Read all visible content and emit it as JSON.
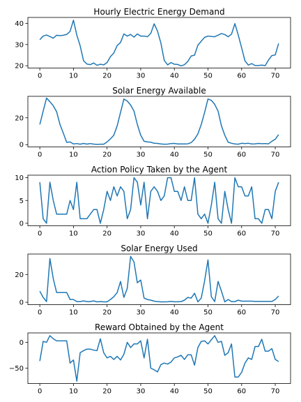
{
  "figure": {
    "line_color": "#1f77b4"
  },
  "chart_data": [
    {
      "type": "line",
      "title": "Hourly Electric Energy Demand",
      "xlabel": "",
      "ylabel": "",
      "xlim": [
        -3.55,
        74.55
      ],
      "ylim": [
        18.9,
        42.8
      ],
      "x_ticks": [
        0,
        10,
        20,
        30,
        40,
        50,
        60,
        70
      ],
      "y_ticks": [
        20,
        30,
        40
      ],
      "grid": false,
      "legend": "none",
      "series": [
        {
          "x": [
            0,
            1,
            2,
            3,
            4,
            5,
            6,
            7,
            8,
            9,
            10,
            11,
            12,
            13,
            14,
            15,
            16,
            17,
            18,
            19,
            20,
            21,
            22,
            23,
            24,
            25,
            26,
            27,
            28,
            29,
            30,
            31,
            32,
            33,
            34,
            35,
            36,
            37,
            38,
            39,
            40,
            41,
            42,
            43,
            44,
            45,
            46,
            47,
            48,
            49,
            50,
            51,
            52,
            53,
            54,
            55,
            56,
            57,
            58,
            59,
            60,
            61,
            62,
            63,
            64,
            65,
            66,
            67,
            68,
            69,
            70,
            71
          ],
          "values": [
            32.3,
            34.0,
            34.5,
            33.8,
            33.0,
            34.4,
            34.2,
            34.4,
            34.8,
            36.2,
            41.5,
            34.5,
            29.4,
            22.4,
            20.8,
            20.5,
            21.3,
            20.2,
            20.7,
            20.4,
            21.5,
            24.3,
            26.0,
            29.5,
            31.0,
            35.0,
            34.0,
            34.8,
            33.5,
            35.0,
            34.0,
            34.0,
            33.7,
            35.3,
            39.8,
            36.3,
            30.7,
            22.5,
            20.4,
            21.5,
            20.7,
            20.6,
            19.9,
            20.5,
            22.0,
            24.6,
            25.0,
            29.7,
            31.6,
            33.4,
            34.0,
            33.8,
            33.7,
            34.4,
            35.2,
            34.7,
            33.7,
            34.9,
            39.9,
            34.5,
            28.5,
            22.3,
            20.3,
            21.0,
            20.1,
            20.1,
            20.3,
            20.0,
            22.7,
            24.8,
            25.1,
            30.5
          ]
        }
      ]
    },
    {
      "type": "line",
      "title": "Solar Energy Available",
      "xlabel": "",
      "ylabel": "",
      "xlim": [
        -3.55,
        74.55
      ],
      "ylim": [
        -1.7,
        36.0
      ],
      "x_ticks": [
        0,
        10,
        20,
        30,
        40,
        50,
        60,
        70
      ],
      "y_ticks": [
        0,
        20
      ],
      "grid": false,
      "legend": "none",
      "series": [
        {
          "x": [
            0,
            1,
            2,
            3,
            4,
            5,
            6,
            7,
            8,
            9,
            10,
            11,
            12,
            13,
            14,
            15,
            16,
            17,
            18,
            19,
            20,
            21,
            22,
            23,
            24,
            25,
            26,
            27,
            28,
            29,
            30,
            31,
            32,
            33,
            34,
            35,
            36,
            37,
            38,
            39,
            40,
            41,
            42,
            43,
            44,
            45,
            46,
            47,
            48,
            49,
            50,
            51,
            52,
            53,
            54,
            55,
            56,
            57,
            58,
            59,
            60,
            61,
            62,
            63,
            64,
            65,
            66,
            67,
            68,
            69,
            70,
            71
          ],
          "values": [
            15.0,
            25.0,
            34.7,
            32.0,
            29.0,
            24.5,
            15.0,
            8.5,
            1.7,
            2.0,
            0.5,
            0.8,
            0.3,
            0.9,
            0.4,
            0.8,
            0.4,
            0.2,
            0.3,
            0.3,
            2.0,
            4.3,
            7.0,
            14.0,
            24.0,
            34.0,
            32.5,
            29.5,
            25.0,
            15.0,
            7.0,
            2.5,
            2.0,
            1.8,
            1.0,
            0.9,
            0.5,
            0.3,
            0.4,
            0.8,
            0.9,
            0.5,
            0.5,
            0.5,
            0.6,
            1.5,
            4.0,
            8.0,
            15.0,
            24.0,
            34.0,
            33.0,
            30.0,
            25.0,
            14.0,
            7.0,
            1.8,
            1.0,
            0.5,
            0.3,
            1.0,
            0.8,
            1.0,
            0.5,
            0.6,
            0.9,
            0.7,
            0.8,
            0.6,
            2.5,
            4.0,
            7.5
          ]
        }
      ]
    },
    {
      "type": "line",
      "title": "Action Policy Taken by the Agent",
      "xlabel": "",
      "ylabel": "",
      "xlim": [
        -3.55,
        74.55
      ],
      "ylim": [
        -0.55,
        10.55
      ],
      "x_ticks": [
        0,
        10,
        20,
        30,
        40,
        50,
        60,
        70
      ],
      "y_ticks": [
        0,
        5,
        10
      ],
      "grid": false,
      "legend": "none",
      "series": [
        {
          "x": [
            0,
            1,
            2,
            3,
            4,
            5,
            6,
            7,
            8,
            9,
            10,
            11,
            12,
            13,
            14,
            15,
            16,
            17,
            18,
            19,
            20,
            21,
            22,
            23,
            24,
            25,
            26,
            27,
            28,
            29,
            30,
            31,
            32,
            33,
            34,
            35,
            36,
            37,
            38,
            39,
            40,
            41,
            42,
            43,
            44,
            45,
            46,
            47,
            48,
            49,
            50,
            51,
            52,
            53,
            54,
            55,
            56,
            57,
            58,
            59,
            60,
            61,
            62,
            63,
            64,
            65,
            66,
            67,
            68,
            69,
            70,
            71
          ],
          "values": [
            9,
            1,
            0,
            9,
            5,
            2,
            2,
            2,
            2,
            5,
            3,
            9,
            1,
            1,
            1,
            2,
            3,
            3,
            0,
            3,
            7,
            5,
            8,
            6,
            8,
            7,
            1,
            3,
            10,
            9,
            4,
            9,
            1,
            7,
            8,
            7,
            5,
            6,
            10,
            10,
            7,
            7,
            5,
            8,
            5,
            5,
            10,
            2,
            1,
            2,
            0,
            4,
            9,
            1,
            0,
            7,
            3,
            0,
            10,
            8,
            8,
            6,
            6,
            8,
            1,
            1,
            0,
            3,
            3,
            1,
            7,
            9
          ]
        }
      ]
    },
    {
      "type": "line",
      "title": "Solar Energy Used",
      "xlabel": "",
      "ylabel": "",
      "xlim": [
        -3.55,
        74.55
      ],
      "ylim": [
        -1.7,
        34.7
      ],
      "x_ticks": [
        0,
        10,
        20,
        30,
        40,
        50,
        60,
        70
      ],
      "y_ticks": [
        0,
        20
      ],
      "grid": false,
      "legend": "none",
      "series": [
        {
          "x": [
            0,
            1,
            2,
            3,
            4,
            5,
            6,
            7,
            8,
            9,
            10,
            11,
            12,
            13,
            14,
            15,
            16,
            17,
            18,
            19,
            20,
            21,
            22,
            23,
            24,
            25,
            26,
            27,
            28,
            29,
            30,
            31,
            32,
            33,
            34,
            35,
            36,
            37,
            38,
            39,
            40,
            41,
            42,
            43,
            44,
            45,
            46,
            47,
            48,
            49,
            50,
            51,
            52,
            53,
            54,
            55,
            56,
            57,
            58,
            59,
            60,
            61,
            62,
            63,
            64,
            65,
            66,
            67,
            68,
            69,
            70,
            71
          ],
          "values": [
            8.0,
            3.5,
            0.5,
            31.5,
            17.0,
            7.0,
            7.0,
            7.0,
            7.0,
            2.0,
            2.0,
            0.5,
            0.5,
            1.0,
            0.5,
            0.5,
            1.0,
            0.3,
            0.5,
            0.3,
            0.3,
            2.0,
            4.0,
            7.0,
            15.0,
            3.5,
            10.0,
            33.0,
            29.0,
            14.0,
            16.0,
            3.0,
            2.0,
            1.5,
            0.8,
            0.5,
            0.3,
            0.3,
            0.4,
            0.6,
            0.4,
            0.4,
            0.5,
            1.5,
            3.5,
            3.0,
            6.5,
            0.3,
            3.0,
            15.5,
            30.5,
            4.0,
            0.5,
            15.0,
            8.0,
            0.3,
            2.0,
            0.5,
            0.5,
            1.5,
            0.8,
            0.8,
            0.8,
            0.8,
            0.6,
            0.6,
            0.6,
            0.6,
            0.6,
            0.6,
            2.0,
            4.5
          ]
        }
      ]
    },
    {
      "type": "line",
      "title": "Reward Obtained by the Agent",
      "xlabel": "",
      "ylabel": "",
      "xlim": [
        -3.55,
        74.55
      ],
      "ylim": [
        -79.5,
        18.3
      ],
      "x_ticks": [
        0,
        10,
        20,
        30,
        40,
        50,
        60,
        70
      ],
      "y_ticks": [
        -50,
        0
      ],
      "grid": false,
      "legend": "none",
      "series": [
        {
          "x": [
            0,
            1,
            2,
            3,
            4,
            5,
            6,
            7,
            8,
            9,
            10,
            11,
            12,
            13,
            14,
            15,
            16,
            17,
            18,
            19,
            20,
            21,
            22,
            23,
            24,
            25,
            26,
            27,
            28,
            29,
            30,
            31,
            32,
            33,
            34,
            35,
            36,
            37,
            38,
            39,
            40,
            41,
            42,
            43,
            44,
            45,
            46,
            47,
            48,
            49,
            50,
            51,
            52,
            53,
            54,
            55,
            56,
            57,
            58,
            59,
            60,
            61,
            62,
            63,
            64,
            65,
            66,
            67,
            68,
            69,
            70,
            71
          ],
          "values": [
            -36,
            2,
            0,
            13,
            7,
            3,
            3,
            3,
            3,
            -40,
            -34,
            -75,
            -20,
            -16,
            -13,
            -13,
            -15,
            -16,
            7,
            -20,
            -30,
            -27,
            -33,
            -27,
            -34,
            -23,
            0,
            -10,
            -3,
            -3,
            3,
            -30,
            6,
            -50,
            -53,
            -57,
            -43,
            -40,
            -42,
            -38,
            -30,
            -28,
            -25,
            -33,
            -24,
            -24,
            -44,
            -10,
            2,
            3,
            -3,
            5,
            13,
            0,
            2,
            -25,
            -20,
            -3,
            -67,
            -67,
            -58,
            -40,
            -30,
            -33,
            -8,
            -8,
            6,
            -17,
            -17,
            -12,
            -33,
            -37
          ]
        }
      ]
    }
  ]
}
